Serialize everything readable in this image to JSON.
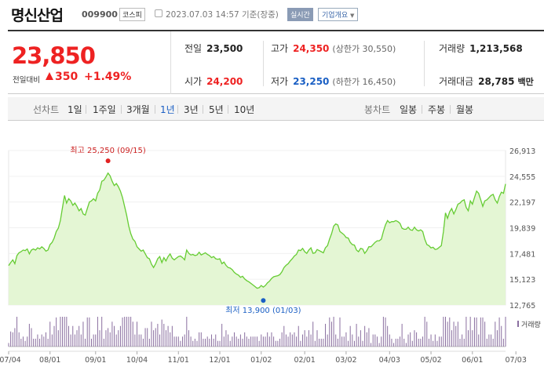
{
  "header": {
    "name": "명신산업",
    "code": "009900",
    "market": "코스피",
    "timestamp": "2023.07.03 14:57 기준(장중)",
    "realtime": "실시간",
    "corp_info": "기업개요",
    "corp_arrow": "▼"
  },
  "summary": {
    "price": "23,850",
    "change_label": "전일대비",
    "change": "350",
    "change_pct": "+1.49%",
    "items": [
      {
        "label": "전일",
        "value": "23,500",
        "sub": ""
      },
      {
        "label": "고가",
        "value": "24,350",
        "sub": "(상한가 30,550)"
      },
      {
        "label": "거래량",
        "value": "1,213,568",
        "sub": ""
      },
      {
        "label": "시가",
        "value": "24,200",
        "sub": ""
      },
      {
        "label": "저가",
        "value": "23,250",
        "sub": "(하한가 16,450)"
      },
      {
        "label": "거래대금",
        "value": "28,785",
        "sub": "백만"
      }
    ]
  },
  "periods": {
    "line_label": "선차트",
    "line_items": [
      "1일",
      "1주일",
      "3개월",
      "1년",
      "3년",
      "5년",
      "10년"
    ],
    "selected": "1년",
    "candle_label": "봉차트",
    "candle_items": [
      "일봉",
      "주봉",
      "월봉"
    ]
  },
  "colors": {
    "up": "#e22222",
    "down": "#1a5fc4",
    "line": "#66cc33",
    "fill": "#e4f6d4",
    "volume": "#8a6fa0"
  },
  "chart_data": {
    "type": "area",
    "y_ticks": [
      "26,913",
      "24,555",
      "22,197",
      "19,839",
      "17,481",
      "15,123",
      "12,765"
    ],
    "ylim": [
      12765,
      26913
    ],
    "x_ticks": [
      "07/04",
      "08/01",
      "09/01",
      "10/04",
      "11/01",
      "12/01",
      "01/02",
      "02/01",
      "03/02",
      "04/03",
      "05/02",
      "06/01",
      "07/03"
    ],
    "x_tick_index": [
      0,
      20,
      42,
      62,
      82,
      102,
      122,
      143,
      163,
      184,
      204,
      224,
      245
    ],
    "high_label": "최고 25,250 (09/15)",
    "low_label": "최저 13,900 (01/03)",
    "high_index": 48,
    "high_value": 25250,
    "low_index": 123,
    "low_value": 13900,
    "volume_label": "거래량",
    "series": [
      {
        "values": [
          16380,
          16650,
          16900,
          16550,
          17300,
          17550,
          17650,
          17800,
          17750,
          17900,
          17450,
          17800,
          17900,
          17800,
          18000,
          17900,
          18100,
          17950,
          17700,
          17800,
          18300,
          18500,
          18900,
          19500,
          19800,
          20500,
          21700,
          22800,
          22100,
          22500,
          22300,
          21900,
          22100,
          21800,
          21400,
          21600,
          21100,
          21000,
          21600,
          22200,
          22300,
          22500,
          22300,
          23000,
          23300,
          24100,
          24200,
          24500,
          24850,
          24600,
          24100,
          23700,
          23900,
          23600,
          23200,
          22600,
          21800,
          21000,
          20000,
          19300,
          18800,
          18600,
          18100,
          17900,
          17700,
          17800,
          17450,
          17100,
          17000,
          16500,
          16200,
          16550,
          17000,
          17200,
          16650,
          17100,
          16800,
          17200,
          17450,
          17050,
          16900,
          17050,
          17200,
          17250,
          17100,
          16900,
          17800,
          17500,
          17350,
          17400,
          17300,
          17350,
          17600,
          17350,
          17450,
          17550,
          17400,
          17300,
          17100,
          17200,
          17000,
          16950,
          17000,
          16550,
          16700,
          16400,
          16200,
          16150,
          16000,
          15750,
          15600,
          15500,
          15300,
          15400,
          15150,
          15000,
          14900,
          14750,
          14600,
          14450,
          14300,
          14350,
          14550,
          14400,
          14550,
          14800,
          14950,
          15200,
          15350,
          15400,
          15450,
          15550,
          15800,
          16200,
          16400,
          16550,
          16800,
          17000,
          17250,
          17400,
          17800,
          17750,
          17950,
          17650,
          17500,
          17800,
          18000,
          17500,
          17550,
          17850,
          17750,
          17650,
          17550,
          18000,
          18200,
          18800,
          19300,
          20000,
          20200,
          20100,
          19500,
          19350,
          19200,
          18950,
          18900,
          18500,
          18300,
          18250,
          17800,
          17650,
          17950,
          17900,
          17500,
          17750,
          18100,
          18100,
          18300,
          18500,
          18650,
          18650,
          18800,
          19500,
          20100,
          20500,
          20300,
          20400,
          20400,
          20500,
          20400,
          20250,
          19800,
          19700,
          19700,
          19900,
          19650,
          19600,
          19900,
          19650,
          19550,
          19650,
          19500,
          18800,
          18300,
          18200,
          18000,
          18050,
          17850,
          17900,
          18050,
          18200,
          19500,
          21200,
          20700,
          21300,
          21600,
          21100,
          21500,
          22000,
          22100,
          22300,
          22400,
          21700,
          21400,
          22300,
          22000,
          22600,
          23200,
          23000,
          22400,
          21800,
          22300,
          22400,
          22600,
          22800,
          22900,
          22400,
          22100,
          22700,
          23100,
          23000,
          23850
        ]
      }
    ]
  }
}
